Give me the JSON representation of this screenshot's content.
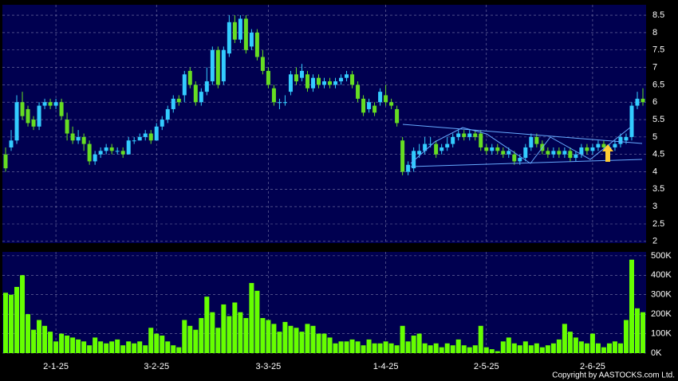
{
  "chart_data": {
    "type": "candlestick",
    "categories": [
      null,
      null,
      null,
      null,
      null,
      null,
      null,
      null,
      null,
      "2-1-25",
      null,
      null,
      null,
      null,
      null,
      null,
      null,
      null,
      null,
      null,
      null,
      null,
      null,
      null,
      null,
      null,
      null,
      "3-2-25",
      null,
      null,
      null,
      null,
      null,
      null,
      null,
      null,
      null,
      null,
      null,
      null,
      null,
      null,
      null,
      null,
      null,
      null,
      null,
      "3-3-25",
      null,
      null,
      null,
      null,
      null,
      null,
      null,
      null,
      null,
      null,
      null,
      null,
      null,
      null,
      null,
      null,
      null,
      null,
      null,
      null,
      "1-4-25",
      null,
      null,
      null,
      null,
      null,
      null,
      null,
      null,
      null,
      null,
      null,
      null,
      null,
      null,
      null,
      null,
      null,
      "2-5-25",
      null,
      null,
      null,
      null,
      null,
      null,
      null,
      null,
      null,
      null,
      null,
      null,
      null,
      null,
      null,
      null,
      null,
      null,
      "2-6-25",
      null,
      null,
      null,
      null,
      null,
      null,
      null,
      null,
      null
    ],
    "open": [
      4.5,
      4.7,
      4.9,
      6.0,
      5.8,
      5.5,
      5.3,
      5.9,
      6.0,
      5.9,
      6.0,
      5.5,
      5.1,
      4.9,
      5.0,
      4.8,
      4.3,
      4.5,
      4.6,
      4.7,
      4.6,
      4.6,
      4.5,
      4.9,
      4.9,
      5.0,
      5.1,
      4.9,
      5.3,
      5.5,
      5.8,
      6.1,
      6.2,
      6.9,
      6.5,
      6.0,
      6.3,
      6.6,
      7.5,
      6.6,
      7.4,
      8.3,
      7.8,
      8.4,
      7.6,
      8.0,
      7.3,
      6.9,
      6.4,
      6.0,
      6.0,
      6.3,
      6.8,
      6.7,
      6.8,
      6.4,
      6.7,
      6.5,
      6.6,
      6.5,
      6.6,
      6.7,
      6.8,
      6.5,
      6.1,
      5.8,
      5.9,
      6.0,
      6.2,
      6.0,
      5.8,
      4.9,
      4.0,
      4.1,
      4.5,
      4.6,
      4.8,
      4.8,
      4.6,
      4.7,
      4.8,
      5.0,
      5.1,
      5.0,
      5.1,
      5.1,
      4.7,
      4.6,
      4.7,
      4.6,
      4.5,
      4.5,
      4.3,
      4.4,
      4.7,
      5.0,
      4.8,
      4.6,
      4.5,
      4.6,
      4.5,
      4.6,
      4.4,
      4.5,
      4.7,
      4.6,
      4.7,
      4.8,
      4.6,
      4.7,
      4.8,
      4.9,
      5.0,
      5.9,
      6.1
    ],
    "high": [
      4.7,
      5.2,
      6.2,
      6.3,
      5.9,
      5.6,
      6.0,
      6.1,
      6.1,
      6.1,
      6.1,
      5.7,
      5.3,
      5.2,
      5.1,
      4.9,
      4.6,
      4.7,
      4.8,
      4.8,
      4.7,
      4.7,
      5.0,
      5.0,
      5.1,
      5.2,
      5.2,
      5.4,
      5.6,
      5.9,
      6.2,
      6.2,
      6.9,
      7.0,
      6.6,
      6.4,
      7.0,
      7.6,
      7.6,
      7.6,
      8.5,
      8.5,
      8.5,
      8.5,
      8.1,
      8.1,
      7.5,
      7.0,
      6.5,
      6.1,
      6.2,
      6.9,
      7.0,
      7.1,
      6.9,
      6.8,
      6.8,
      6.7,
      6.7,
      6.7,
      6.8,
      6.9,
      6.9,
      6.6,
      6.2,
      6.1,
      6.0,
      6.4,
      6.5,
      6.1,
      5.9,
      5.0,
      4.3,
      4.7,
      4.8,
      5.0,
      5.0,
      4.9,
      4.8,
      5.0,
      5.1,
      5.2,
      5.2,
      5.2,
      5.2,
      5.2,
      4.8,
      4.8,
      4.8,
      4.7,
      4.7,
      4.6,
      4.5,
      4.8,
      5.1,
      5.1,
      4.9,
      4.7,
      4.7,
      4.7,
      4.7,
      4.7,
      4.6,
      4.8,
      4.8,
      4.8,
      4.9,
      4.9,
      4.8,
      4.9,
      5.1,
      5.1,
      6.0,
      6.3,
      6.4
    ],
    "low": [
      4.0,
      4.6,
      4.8,
      5.5,
      5.3,
      5.2,
      5.2,
      5.8,
      5.8,
      5.8,
      5.5,
      4.9,
      4.8,
      4.8,
      4.6,
      4.2,
      4.2,
      4.4,
      4.5,
      4.5,
      4.5,
      4.4,
      4.5,
      4.8,
      4.9,
      4.9,
      4.8,
      4.9,
      5.2,
      5.4,
      5.7,
      5.9,
      6.0,
      6.4,
      5.9,
      5.9,
      6.2,
      6.5,
      6.4,
      6.5,
      7.3,
      7.7,
      7.7,
      7.4,
      7.5,
      7.2,
      6.8,
      6.4,
      5.9,
      5.8,
      5.9,
      6.2,
      6.5,
      6.6,
      6.3,
      6.3,
      6.4,
      6.4,
      6.4,
      6.4,
      6.5,
      6.6,
      6.4,
      6.0,
      5.6,
      5.7,
      5.6,
      5.9,
      5.9,
      5.8,
      5.3,
      3.9,
      3.9,
      4.0,
      4.4,
      4.5,
      4.7,
      4.4,
      4.5,
      4.6,
      4.7,
      4.9,
      4.9,
      4.9,
      4.9,
      4.6,
      4.5,
      4.5,
      4.5,
      4.4,
      4.4,
      4.2,
      4.2,
      4.3,
      4.6,
      4.7,
      4.5,
      4.4,
      4.4,
      4.4,
      4.4,
      4.3,
      4.3,
      4.4,
      4.5,
      4.5,
      4.6,
      4.6,
      4.5,
      4.6,
      4.7,
      4.8,
      4.9,
      5.8,
      5.9
    ],
    "close": [
      4.1,
      4.9,
      6.0,
      5.6,
      5.4,
      5.3,
      5.9,
      6.0,
      5.9,
      6.0,
      5.6,
      5.1,
      4.9,
      5.0,
      4.8,
      4.3,
      4.5,
      4.6,
      4.7,
      4.6,
      4.6,
      4.5,
      4.9,
      4.9,
      5.0,
      5.1,
      4.9,
      5.3,
      5.5,
      5.8,
      6.1,
      6.0,
      6.8,
      6.5,
      6.0,
      6.3,
      6.6,
      7.5,
      6.5,
      7.5,
      8.3,
      7.8,
      8.4,
      7.5,
      8.0,
      7.3,
      6.9,
      6.5,
      6.0,
      6.0,
      6.0,
      6.8,
      6.6,
      6.9,
      6.4,
      6.7,
      6.5,
      6.6,
      6.5,
      6.6,
      6.7,
      6.8,
      6.5,
      6.1,
      5.7,
      6.0,
      5.7,
      6.3,
      6.0,
      5.9,
      5.4,
      4.0,
      4.2,
      4.6,
      4.6,
      4.8,
      4.8,
      4.5,
      4.7,
      4.8,
      5.0,
      5.1,
      5.0,
      5.1,
      5.0,
      4.7,
      4.6,
      4.7,
      4.6,
      4.5,
      4.6,
      4.3,
      4.4,
      4.7,
      5.0,
      4.8,
      4.6,
      4.5,
      4.6,
      4.5,
      4.6,
      4.4,
      4.5,
      4.7,
      4.6,
      4.7,
      4.8,
      4.7,
      4.7,
      4.8,
      5.0,
      5.0,
      5.9,
      6.1,
      6.0
    ],
    "volume": [
      310000,
      300000,
      340000,
      400000,
      200000,
      120000,
      170000,
      140000,
      110000,
      60000,
      100000,
      90000,
      80000,
      70000,
      60000,
      40000,
      80000,
      60000,
      50000,
      60000,
      70000,
      40000,
      60000,
      50000,
      60000,
      40000,
      130000,
      100000,
      90000,
      60000,
      40000,
      30000,
      170000,
      140000,
      120000,
      180000,
      290000,
      210000,
      130000,
      250000,
      190000,
      260000,
      210000,
      180000,
      360000,
      320000,
      180000,
      170000,
      150000,
      110000,
      160000,
      140000,
      130000,
      110000,
      150000,
      140000,
      100000,
      100000,
      80000,
      50000,
      60000,
      60000,
      70000,
      60000,
      40000,
      70000,
      50000,
      50000,
      60000,
      50000,
      40000,
      140000,
      60000,
      90000,
      100000,
      50000,
      40000,
      50000,
      30000,
      50000,
      40000,
      70000,
      40000,
      30000,
      40000,
      140000,
      30000,
      20000,
      10000,
      60000,
      80000,
      50000,
      40000,
      60000,
      40000,
      50000,
      30000,
      40000,
      50000,
      70000,
      150000,
      110000,
      80000,
      60000,
      50000,
      100000,
      50000,
      30000,
      50000,
      60000,
      50000,
      170000,
      480000,
      230000,
      210000
    ],
    "up_color": "#33ccff",
    "down_color": "#66dd22",
    "volume_color": "#66ff00",
    "ylim": [
      1.95,
      8.8
    ],
    "yticks": [
      2,
      2.5,
      3,
      3.5,
      4,
      4.5,
      5,
      5.5,
      6,
      6.5,
      7,
      7.5,
      8,
      8.5
    ],
    "volume_ylim": [
      0,
      520000
    ],
    "volume_yticks": [
      {
        "value": 0,
        "label": "0K"
      },
      {
        "value": 100000,
        "label": "100K"
      },
      {
        "value": 200000,
        "label": "200K"
      },
      {
        "value": 300000,
        "label": "300K"
      },
      {
        "value": 400000,
        "label": "400K"
      },
      {
        "value": 500000,
        "label": "500K"
      }
    ],
    "grid": true,
    "copyright": "Copyright by AASTOCKS.com Ltd."
  }
}
